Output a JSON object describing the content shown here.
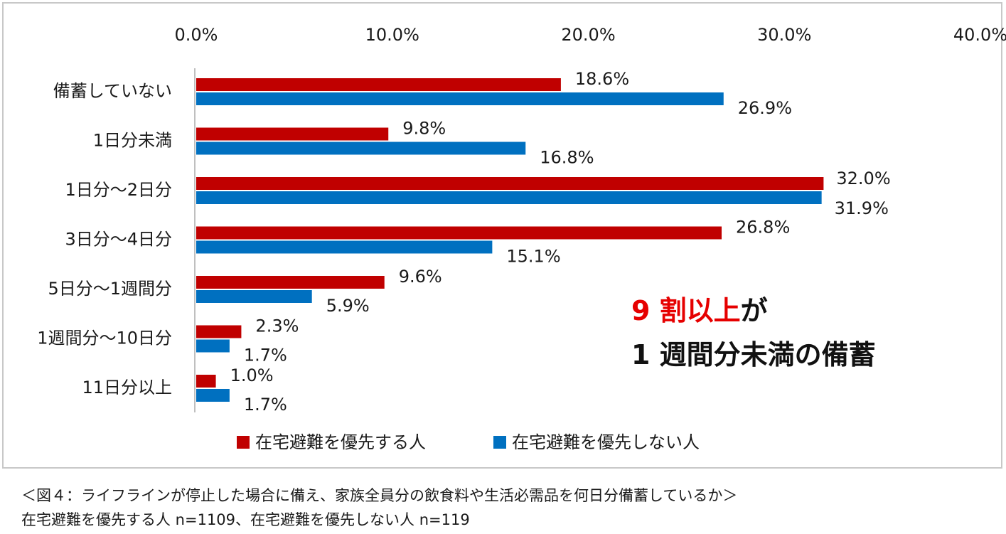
{
  "chart_data": {
    "type": "bar",
    "orientation": "horizontal",
    "categories": [
      "備蓄していない",
      "1日分未満",
      "1日分～2日分",
      "3日分～4日分",
      "5日分～1週間分",
      "1週間分～10日分",
      "11日分以上"
    ],
    "series": [
      {
        "name": "在宅避難を優先する人",
        "color": "#c00000",
        "values": [
          18.6,
          9.8,
          32.0,
          26.8,
          9.6,
          2.3,
          1.0
        ],
        "labels": [
          "18.6%",
          "9.8%",
          "32.0%",
          "26.8%",
          "9.6%",
          "2.3%",
          "1.0%"
        ]
      },
      {
        "name": "在宅避難を優先しない人",
        "color": "#0070c0",
        "values": [
          26.9,
          16.8,
          31.9,
          15.1,
          5.9,
          1.7,
          1.7
        ],
        "labels": [
          "26.9%",
          "16.8%",
          "31.9%",
          "15.1%",
          "5.9%",
          "1.7%",
          "1.7%"
        ]
      }
    ],
    "xlim": [
      0,
      40
    ],
    "x_ticks": [
      0,
      10,
      20,
      30,
      40
    ],
    "x_tick_labels": [
      "0.0%",
      "10.0%",
      "20.0%",
      "30.0%",
      "40.0%"
    ],
    "x_axis_position": "top",
    "grid": false,
    "legend_position": "bottom",
    "title": "",
    "xlabel": "",
    "ylabel": "",
    "annotation": {
      "line1_highlight": "9 割以上",
      "line1_rest": "が",
      "line2": "1 週間分未満の備蓄",
      "highlight_color": "#e60000"
    }
  },
  "caption": {
    "line1": "＜図４：ライフラインが停止した場合に備え、家族全員分の飲食料や生活必需品を何日分備蓄しているか＞",
    "line2": "在宅避難を優先する人 n=1109、在宅避難を優先しない人 n=119"
  }
}
